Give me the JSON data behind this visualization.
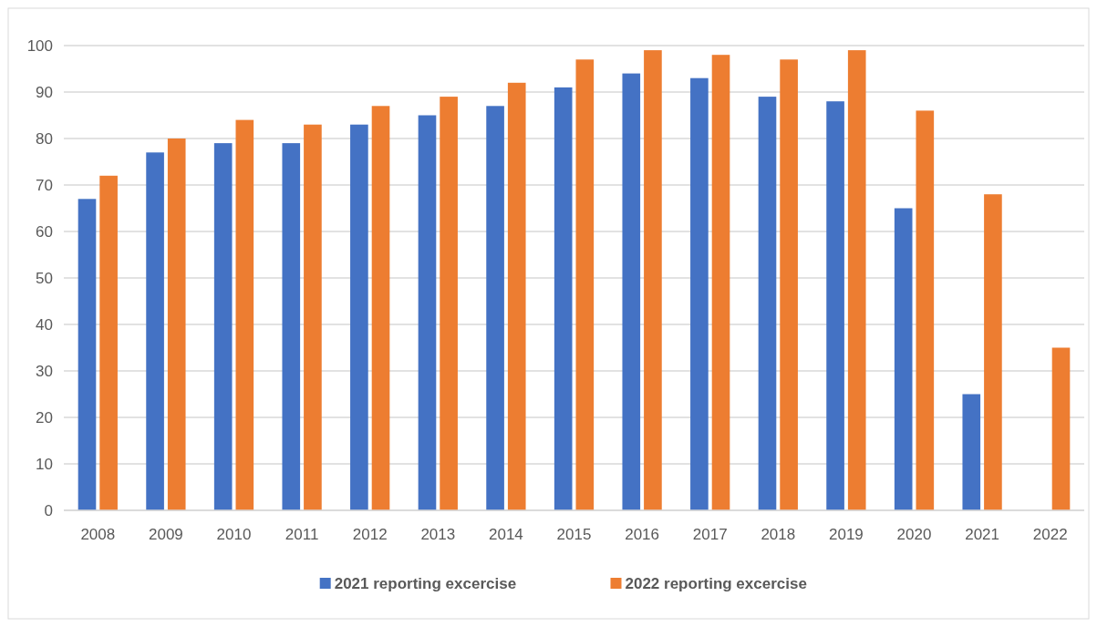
{
  "chart_data": {
    "type": "bar",
    "categories": [
      "2008",
      "2009",
      "2010",
      "2011",
      "2012",
      "2013",
      "2014",
      "2015",
      "2016",
      "2017",
      "2018",
      "2019",
      "2020",
      "2021",
      "2022"
    ],
    "series": [
      {
        "name": "2021 reporting excercise",
        "color": "#4472c4",
        "values": [
          67,
          77,
          79,
          79,
          83,
          85,
          87,
          91,
          94,
          93,
          89,
          88,
          65,
          25,
          null
        ]
      },
      {
        "name": "2022 reporting excercise",
        "color": "#ed7d31",
        "values": [
          72,
          80,
          84,
          83,
          87,
          89,
          92,
          97,
          99,
          98,
          97,
          99,
          86,
          68,
          35
        ]
      }
    ],
    "ylim": [
      0,
      100
    ],
    "yticks": [
      0,
      10,
      20,
      30,
      40,
      50,
      60,
      70,
      80,
      90,
      100
    ],
    "grid": "y",
    "legend": "bottom"
  }
}
